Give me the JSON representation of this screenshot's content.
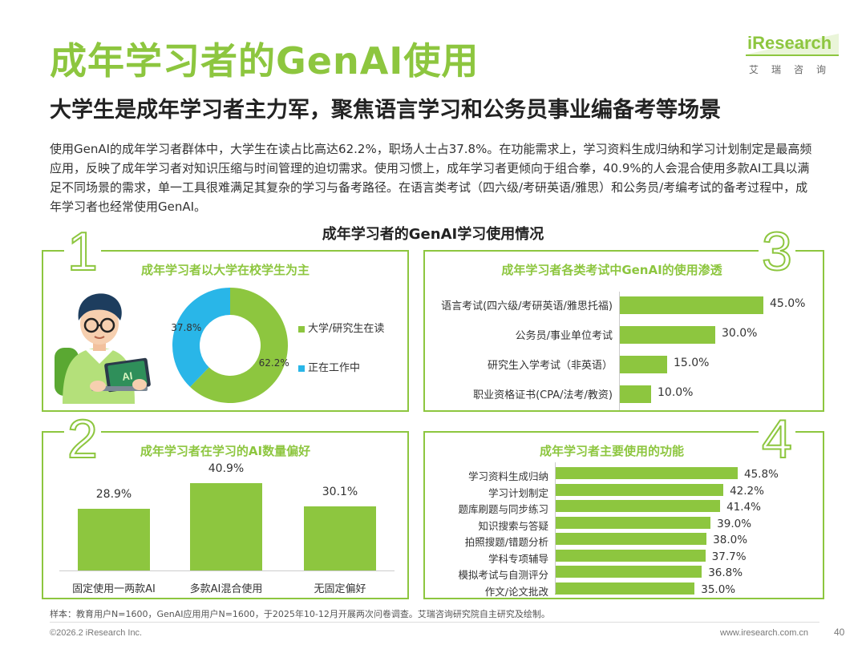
{
  "header": {
    "title": "成年学习者的GenAI使用",
    "subtitle": "大学生是成年学习者主力军，聚焦语言学习和公务员事业编备考等场景",
    "intro": "使用GenAI的成年学习者群体中，大学生在读占比高达62.2%，职场人士占37.8%。在功能需求上，学习资料生成归纳和学习计划制定是最高频应用，反映了成年学习者对知识压缩与时间管理的迫切需求。使用习惯上，成年学习者更倾向于组合拳，40.9%的人会混合使用多款AI工具以满足不同场景的需求，单一工具很难满足其复杂的学习与备考路径。在语言类考试（四六级/考研英语/雅思）和公务员/考编考试的备考过程中，成年学习者也经常使用GenAI。"
  },
  "logo": {
    "text": "iResearch",
    "sub": "艾瑞咨询"
  },
  "main_chart_title": "成年学习者的GenAI学习使用情况",
  "panels": {
    "p1": {
      "num": "1",
      "title": "成年学习者以大学在校学生为主"
    },
    "p2": {
      "num": "2",
      "title": "成年学习者在学习的AI数量偏好"
    },
    "p3": {
      "num": "3",
      "title": "成年学习者各类考试中GenAI的使用渗透"
    },
    "p4": {
      "num": "4",
      "title": "成年学习者主要使用的功能"
    }
  },
  "chart_data": [
    {
      "type": "pie",
      "title": "成年学习者以大学在校学生为主",
      "labels": [
        "大学/研究生在读",
        "正在工作中"
      ],
      "values": [
        62.2,
        37.8
      ],
      "value_labels": [
        "62.2%",
        "37.8%"
      ],
      "colors": [
        "#8dc63f",
        "#29b6e8"
      ],
      "legend": "right"
    },
    {
      "type": "bar",
      "title": "成年学习者在学习的AI数量偏好",
      "categories": [
        "固定使用一两款AI",
        "多款AI混合使用",
        "无固定偏好"
      ],
      "values": [
        28.9,
        40.9,
        30.1
      ],
      "value_labels": [
        "28.9%",
        "40.9%",
        "30.1%"
      ],
      "color": "#8dc63f"
    },
    {
      "type": "bar",
      "orientation": "horizontal",
      "title": "成年学习者各类考试中GenAI的使用渗透",
      "categories": [
        "语言考试(四六级/考研英语/雅思托福)",
        "公务员/事业单位考试",
        "研究生入学考试（非英语）",
        "职业资格证书(CPA/法考/教资)"
      ],
      "values": [
        45.0,
        30.0,
        15.0,
        10.0
      ],
      "value_labels": [
        "45.0%",
        "30.0%",
        "15.0%",
        "10.0%"
      ],
      "color": "#8dc63f"
    },
    {
      "type": "bar",
      "orientation": "horizontal",
      "title": "成年学习者主要使用的功能",
      "categories": [
        "学习资料生成归纳",
        "学习计划制定",
        "题库刷题与同步练习",
        "知识搜索与答疑",
        "拍照搜题/错题分析",
        "学科专项辅导",
        "模拟考试与自测评分",
        "作文/论文批改"
      ],
      "values": [
        45.8,
        42.2,
        41.4,
        39.0,
        38.0,
        37.7,
        36.8,
        35.0
      ],
      "value_labels": [
        "45.8%",
        "42.2%",
        "41.4%",
        "39.0%",
        "38.0%",
        "37.7%",
        "36.8%",
        "35.0%"
      ],
      "color": "#8dc63f"
    }
  ],
  "footer": {
    "note": "样本：教育用户N=1600，GenAI应用用户N=1600，于2025年10-12月开展两次问卷调查。艾瑞咨询研究院自主研究及绘制。",
    "copyright": "©2026.2 iResearch Inc.",
    "website": "www.iresearch.com.cn",
    "page": "40"
  }
}
